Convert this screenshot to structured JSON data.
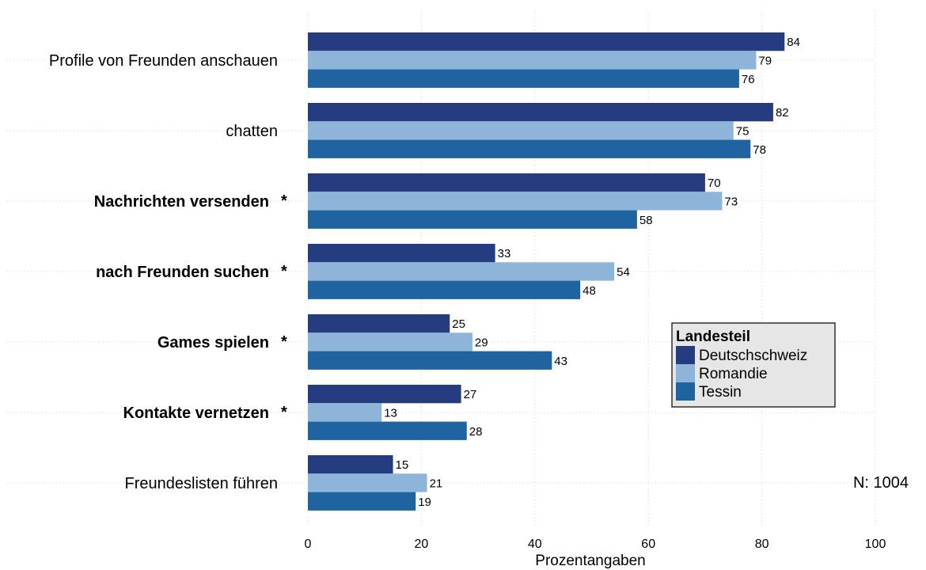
{
  "chart_data": {
    "type": "bar",
    "orientation": "horizontal",
    "categories": [
      "Profile von Freunden anschauen",
      "chatten",
      "Nachrichten versenden",
      "nach Freunden suchen",
      "Games spielen",
      "Kontakte vernetzen",
      "Freundeslisten führen"
    ],
    "significant": [
      false,
      false,
      true,
      true,
      true,
      true,
      false
    ],
    "significance_marker": "*",
    "series": [
      {
        "name": "Deutschschweiz",
        "color": "#253d80",
        "values": [
          84,
          82,
          70,
          33,
          25,
          27,
          15
        ]
      },
      {
        "name": "Romandie",
        "color": "#8cb5d9",
        "values": [
          79,
          75,
          73,
          54,
          29,
          13,
          21
        ]
      },
      {
        "name": "Tessin",
        "color": "#1f63a1",
        "values": [
          76,
          78,
          58,
          48,
          43,
          28,
          19
        ]
      }
    ],
    "xlabel": "Prozentangaben",
    "xlim": [
      0,
      100
    ],
    "xticks": [
      0,
      20,
      40,
      60,
      80,
      100
    ],
    "grid": true,
    "legend": {
      "title": "Landesteil",
      "placement": "center-right"
    },
    "note": "N: 1004"
  }
}
